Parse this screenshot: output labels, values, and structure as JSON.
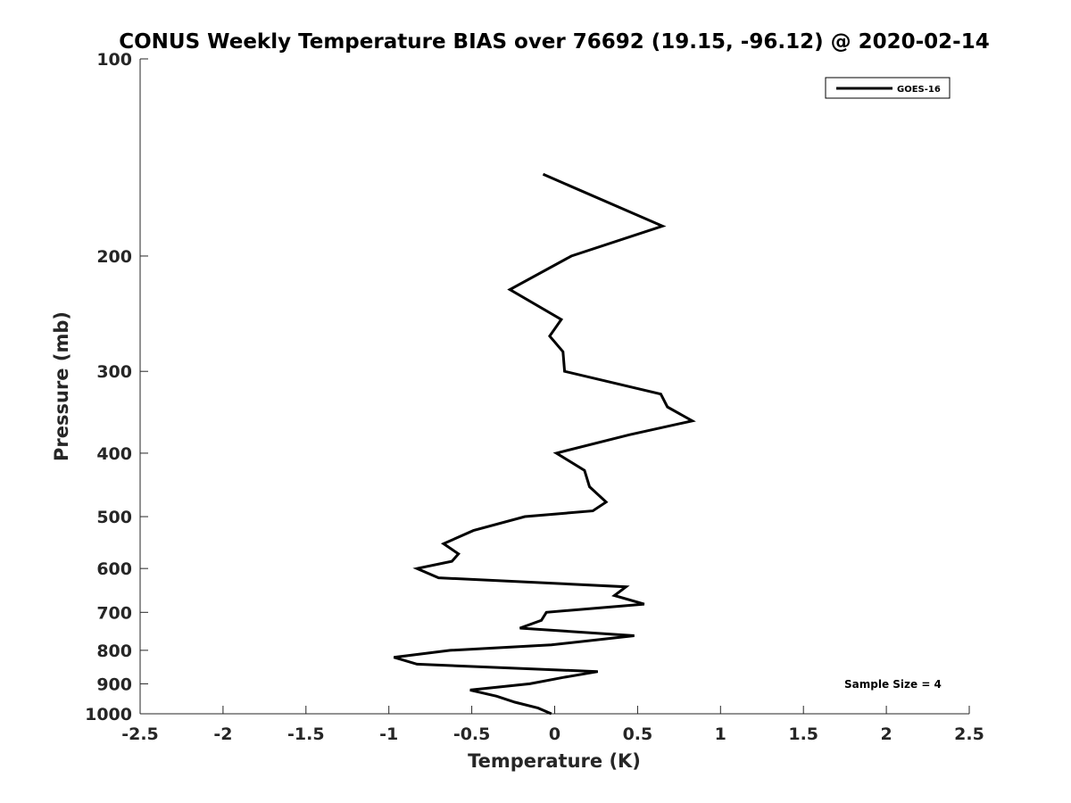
{
  "chart_data": {
    "type": "line",
    "title": "CONUS Weekly Temperature BIAS over 76692 (19.15, -96.12) @ 2020-02-14",
    "xlabel": "Temperature (K)",
    "ylabel": "Pressure (mb)",
    "xlim": [
      -2.5,
      2.5
    ],
    "ylim": [
      100,
      1000
    ],
    "y_scale": "log",
    "y_reversed": true,
    "grid": false,
    "legend_position": "top-right",
    "x_ticks": [
      "-2.5",
      "-2",
      "-1.5",
      "-1",
      "-0.5",
      "0",
      "0.5",
      "1",
      "1.5",
      "2",
      "2.5"
    ],
    "x_tick_values": [
      -2.5,
      -2,
      -1.5,
      -1,
      -0.5,
      0,
      0.5,
      1,
      1.5,
      2,
      2.5
    ],
    "y_ticks": [
      "100",
      "200",
      "300",
      "400",
      "500",
      "600",
      "700",
      "800",
      "900",
      "1000"
    ],
    "y_tick_values": [
      100,
      200,
      300,
      400,
      500,
      600,
      700,
      800,
      900,
      1000
    ],
    "series": [
      {
        "name": "GOES-16",
        "color": "#000000",
        "points": [
          {
            "t": -0.07,
            "p": 150
          },
          {
            "t": 0.65,
            "p": 180
          },
          {
            "t": 0.1,
            "p": 200
          },
          {
            "t": -0.27,
            "p": 225
          },
          {
            "t": 0.04,
            "p": 250
          },
          {
            "t": -0.03,
            "p": 265
          },
          {
            "t": 0.05,
            "p": 280
          },
          {
            "t": 0.06,
            "p": 300
          },
          {
            "t": 0.64,
            "p": 325
          },
          {
            "t": 0.68,
            "p": 340
          },
          {
            "t": 0.83,
            "p": 357
          },
          {
            "t": 0.45,
            "p": 375
          },
          {
            "t": 0.01,
            "p": 400
          },
          {
            "t": 0.18,
            "p": 425
          },
          {
            "t": 0.21,
            "p": 450
          },
          {
            "t": 0.31,
            "p": 475
          },
          {
            "t": 0.23,
            "p": 490
          },
          {
            "t": -0.18,
            "p": 500
          },
          {
            "t": -0.49,
            "p": 525
          },
          {
            "t": -0.67,
            "p": 550
          },
          {
            "t": -0.58,
            "p": 570
          },
          {
            "t": -0.62,
            "p": 585
          },
          {
            "t": -0.83,
            "p": 600
          },
          {
            "t": -0.7,
            "p": 620
          },
          {
            "t": 0.43,
            "p": 640
          },
          {
            "t": 0.36,
            "p": 660
          },
          {
            "t": 0.54,
            "p": 680
          },
          {
            "t": -0.05,
            "p": 700
          },
          {
            "t": -0.08,
            "p": 720
          },
          {
            "t": -0.21,
            "p": 740
          },
          {
            "t": 0.48,
            "p": 760
          },
          {
            "t": -0.02,
            "p": 785
          },
          {
            "t": -0.63,
            "p": 800
          },
          {
            "t": -0.97,
            "p": 820
          },
          {
            "t": -0.83,
            "p": 840
          },
          {
            "t": 0.26,
            "p": 862
          },
          {
            "t": 0.05,
            "p": 880
          },
          {
            "t": -0.15,
            "p": 900
          },
          {
            "t": -0.51,
            "p": 920
          },
          {
            "t": -0.35,
            "p": 940
          },
          {
            "t": -0.24,
            "p": 960
          },
          {
            "t": -0.1,
            "p": 980
          },
          {
            "t": -0.02,
            "p": 1000
          }
        ]
      }
    ],
    "annotation": "Sample Size = 4"
  }
}
